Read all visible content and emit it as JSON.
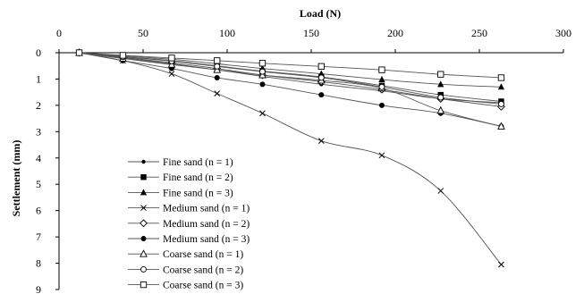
{
  "chart_data": {
    "type": "line",
    "xlabel": "Load (N)",
    "ylabel": "Settlement (mm)",
    "xlim": [
      0,
      300
    ],
    "ylim": [
      0,
      9
    ],
    "y_inverted": true,
    "x_axis_position": "top",
    "x_ticks": [
      "0",
      "50",
      "100",
      "150",
      "200",
      "250",
      "300"
    ],
    "y_ticks": [
      "0",
      "1",
      "2",
      "3",
      "4",
      "5",
      "6",
      "7",
      "8",
      "9"
    ],
    "grid": false,
    "legend_position": "bottom-left",
    "line_color": "#555555",
    "series": [
      {
        "name": "Fine sand (n = 1)",
        "marker": "dot",
        "x": [
          12,
          38,
          67,
          94,
          121,
          156,
          192,
          227,
          263
        ],
        "y": [
          0,
          0.2,
          0.42,
          0.65,
          0.9,
          1.2,
          1.45,
          1.75,
          1.9
        ]
      },
      {
        "name": "Fine sand (n = 2)",
        "marker": "square-filled",
        "x": [
          12,
          38,
          67,
          94,
          121,
          156,
          192,
          227,
          263
        ],
        "y": [
          0,
          0.15,
          0.3,
          0.5,
          0.7,
          0.92,
          1.25,
          1.6,
          1.85
        ]
      },
      {
        "name": "Fine sand (n = 3)",
        "marker": "triangle-filled",
        "x": [
          12,
          38,
          67,
          94,
          121,
          156,
          192,
          227,
          263
        ],
        "y": [
          0,
          0.12,
          0.25,
          0.42,
          0.6,
          0.8,
          1.02,
          1.2,
          1.3
        ]
      },
      {
        "name": "Medium sand (n = 1)",
        "marker": "x",
        "x": [
          12,
          38,
          67,
          94,
          121,
          156,
          192,
          227,
          263
        ],
        "y": [
          0,
          0.3,
          0.8,
          1.55,
          2.3,
          3.35,
          3.9,
          5.25,
          8.05
        ]
      },
      {
        "name": "Medium sand (n = 2)",
        "marker": "diamond-open",
        "x": [
          12,
          38,
          67,
          94,
          121,
          156,
          192,
          227,
          263
        ],
        "y": [
          0,
          0.18,
          0.38,
          0.6,
          0.85,
          1.1,
          1.4,
          1.75,
          2.05
        ]
      },
      {
        "name": "Medium sand (n = 3)",
        "marker": "circle-filled",
        "x": [
          12,
          38,
          67,
          94,
          121,
          156,
          192,
          227,
          263
        ],
        "y": [
          0,
          0.3,
          0.6,
          0.95,
          1.2,
          1.6,
          2.0,
          2.3,
          2.8
        ]
      },
      {
        "name": "Coarse sand (n = 1)",
        "marker": "triangle-open",
        "x": [
          12,
          38,
          67,
          94,
          121,
          156,
          192,
          227,
          263
        ],
        "y": [
          0,
          0.22,
          0.45,
          0.65,
          0.85,
          1.05,
          1.35,
          2.2,
          2.8
        ]
      },
      {
        "name": "Coarse sand (n = 2)",
        "marker": "circle-open",
        "x": [
          12,
          38,
          67,
          94,
          121,
          156,
          192,
          227,
          263
        ],
        "y": [
          0,
          0.16,
          0.32,
          0.52,
          0.72,
          0.95,
          1.3,
          1.7,
          1.95
        ]
      },
      {
        "name": "Coarse sand (n = 3)",
        "marker": "square-open",
        "x": [
          12,
          38,
          67,
          94,
          121,
          156,
          192,
          227,
          263
        ],
        "y": [
          0,
          0.1,
          0.2,
          0.3,
          0.4,
          0.52,
          0.65,
          0.82,
          0.95
        ]
      }
    ]
  }
}
